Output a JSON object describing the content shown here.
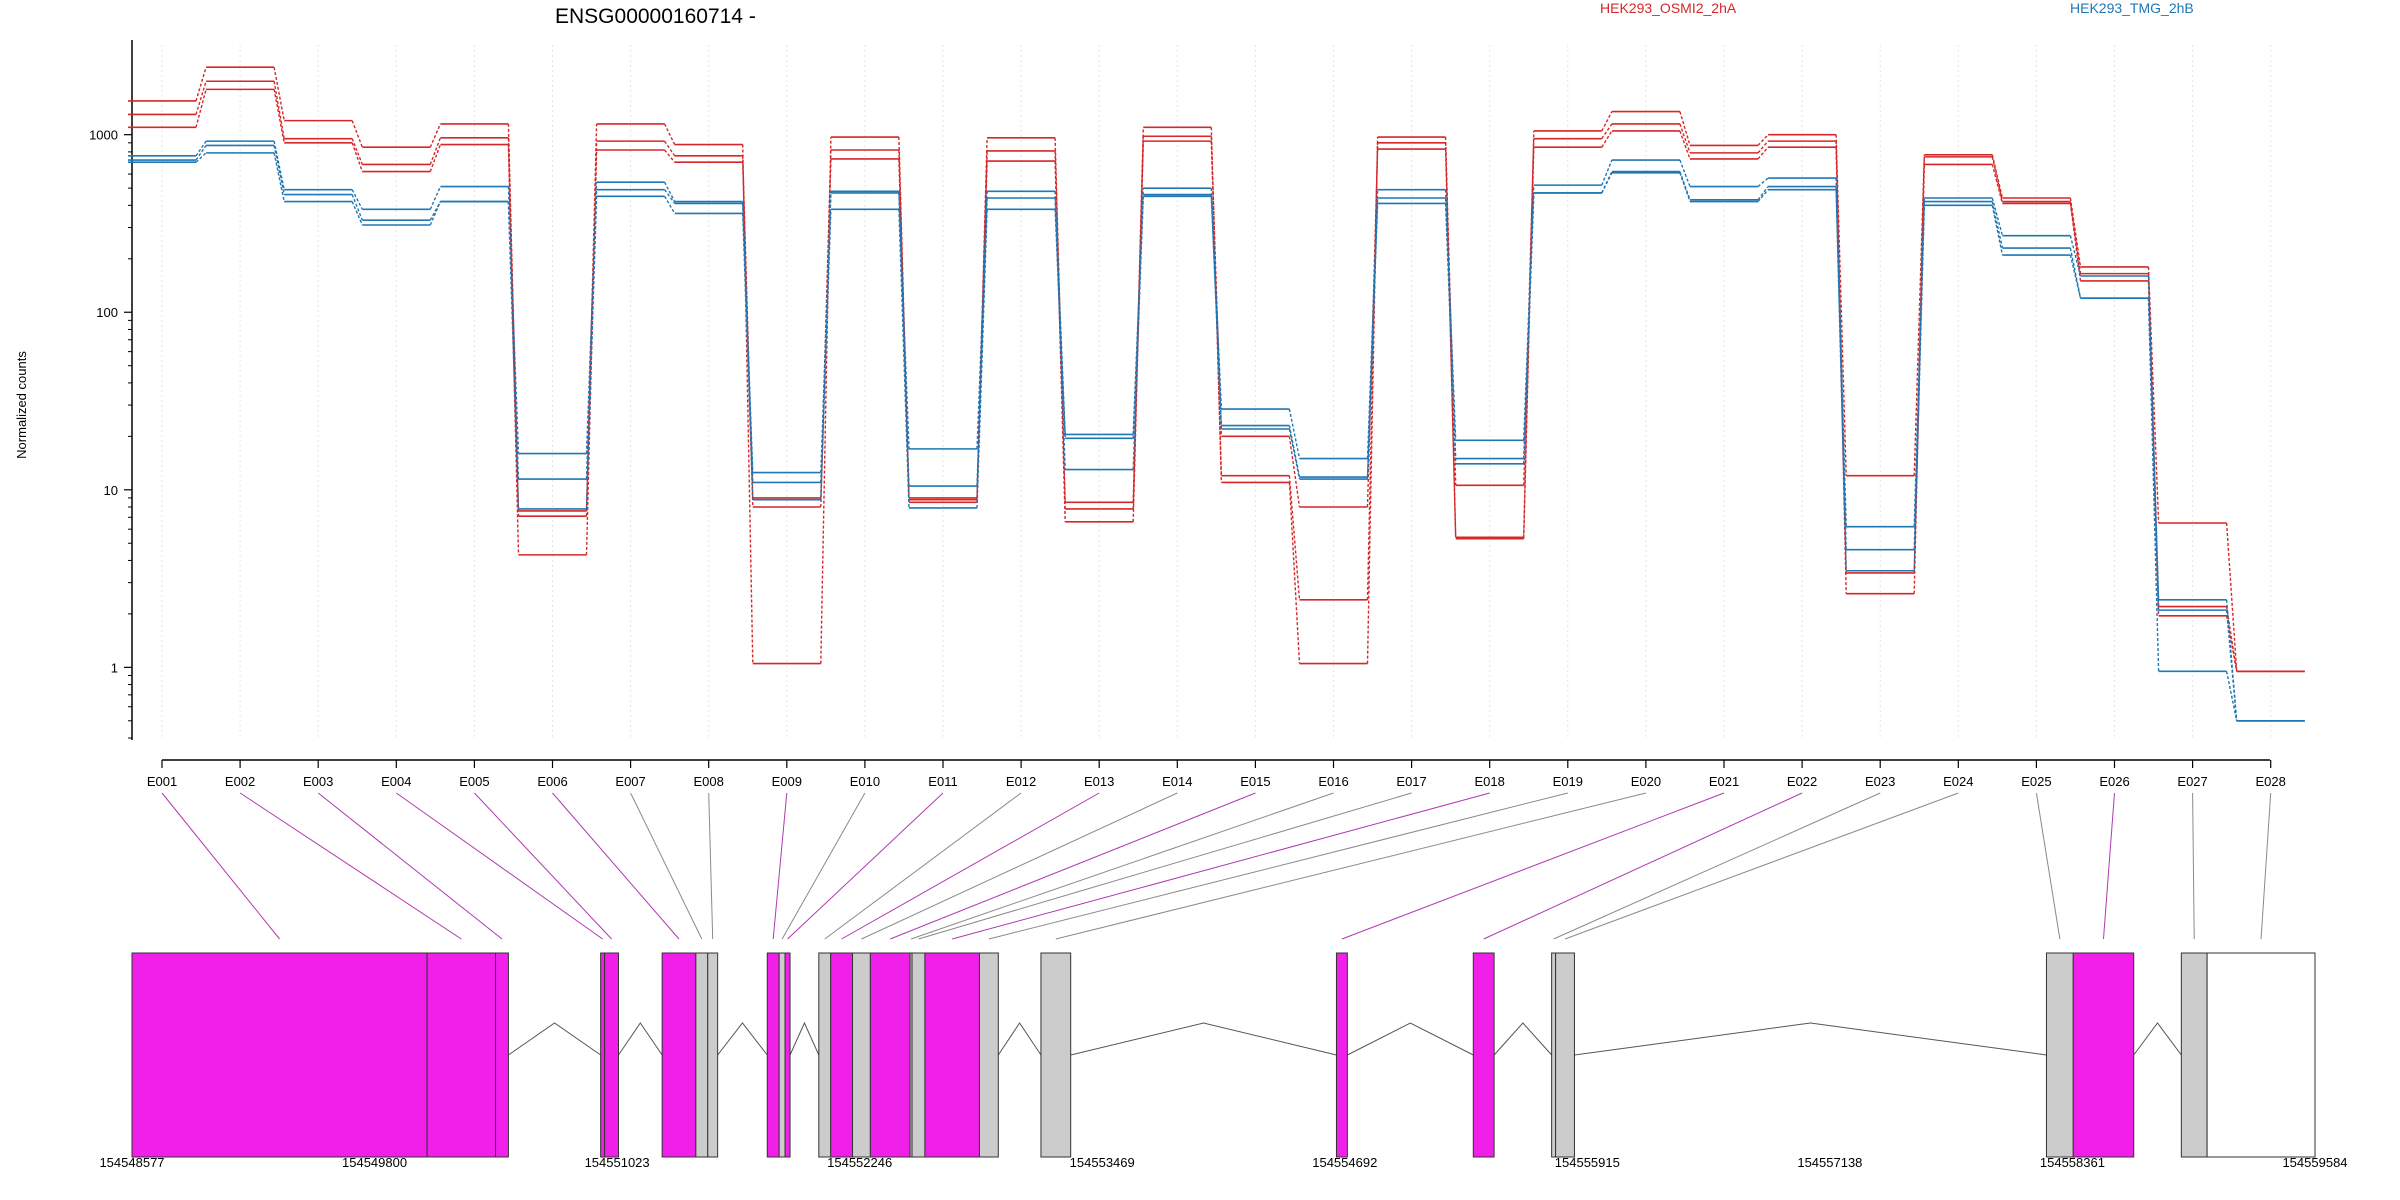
{
  "chart_data": {
    "type": "line",
    "title": "ENSG00000160714 -",
    "ylabel": "Normalized counts",
    "yscale": "log",
    "ylim": [
      0.4,
      3200
    ],
    "yticks": [
      1,
      10,
      100,
      1000
    ],
    "ytick_labels": [
      "1",
      "10",
      "100",
      "1000"
    ],
    "grid": "vertical dotted gridlines at exon centers",
    "legend_placement": "top-right",
    "categories": [
      "E001",
      "E002",
      "E003",
      "E004",
      "E005",
      "E006",
      "E007",
      "E008",
      "E009",
      "E010",
      "E011",
      "E012",
      "E013",
      "E014",
      "E015",
      "E016",
      "E017",
      "E018",
      "E019",
      "E020",
      "E021",
      "E022",
      "E023",
      "E024",
      "E025",
      "E026",
      "E027",
      "E028"
    ],
    "series": [
      {
        "name": "HEK293_OSMI2_2hA",
        "color": "#d62728",
        "values": [
          1550,
          2400,
          1200,
          850,
          1150,
          7.1,
          1150,
          880,
          1.05,
          970,
          9.0,
          960,
          8.5,
          1100,
          11.0,
          1.05,
          970,
          5.4,
          1050,
          1350,
          870,
          1000,
          12.0,
          770,
          440,
          180,
          6.5,
          0.95
        ]
      },
      {
        "name": "HEK293_OSMI2_2hA",
        "color": "#d62728",
        "values": [
          1300,
          2000,
          950,
          680,
          960,
          7.6,
          920,
          760,
          9.0,
          820,
          8.8,
          810,
          7.8,
          980,
          12.0,
          2.4,
          900,
          10.6,
          950,
          1150,
          790,
          920,
          3.4,
          750,
          420,
          165,
          2.2,
          0.95
        ]
      },
      {
        "name": "HEK293_OSMI2_2hA",
        "color": "#d62728",
        "values": [
          1100,
          1800,
          900,
          620,
          880,
          4.3,
          820,
          700,
          8.0,
          730,
          8.5,
          710,
          6.6,
          920,
          20.0,
          8.0,
          830,
          5.3,
          850,
          1050,
          730,
          850,
          2.6,
          680,
          410,
          150,
          1.95,
          0.95
        ]
      },
      {
        "name": "HEK293_TMG_2hB",
        "color": "#1f77b4",
        "values": [
          760,
          920,
          490,
          380,
          510,
          16.0,
          540,
          420,
          12.5,
          480,
          17.0,
          480,
          20.5,
          500,
          28.5,
          15.0,
          490,
          19.0,
          520,
          720,
          510,
          570,
          6.2,
          440,
          270,
          160,
          2.4,
          0.5
        ]
      },
      {
        "name": "HEK293_TMG_2hB",
        "color": "#1f77b4",
        "values": [
          720,
          870,
          460,
          330,
          420,
          11.5,
          490,
          410,
          11.0,
          470,
          10.5,
          440,
          13.0,
          460,
          23.0,
          11.8,
          440,
          15.0,
          470,
          620,
          430,
          510,
          4.6,
          420,
          230,
          120,
          2.1,
          0.5
        ]
      },
      {
        "name": "HEK293_TMG_2hB",
        "color": "#1f77b4",
        "values": [
          700,
          790,
          420,
          310,
          420,
          7.8,
          450,
          360,
          8.8,
          380,
          7.9,
          380,
          19.5,
          450,
          22.0,
          11.5,
          410,
          14.0,
          470,
          610,
          420,
          490,
          3.5,
          400,
          210,
          120,
          0.95,
          0.5
        ]
      }
    ],
    "gene_model": {
      "x_axis_ticks": [
        "154548577",
        "154549800",
        "154551023",
        "154552246",
        "154553469",
        "154554692",
        "154555915",
        "154557138",
        "154558361",
        "154559584"
      ],
      "coord_range": [
        154548577,
        154559584
      ],
      "exon_colors": {
        "significant": "#f020ea",
        "tested": "#cccccc",
        "untested": "#ffffff"
      },
      "exons": [
        {
          "id": "E001",
          "start": 154548577,
          "end": 154550065,
          "type": "significant"
        },
        {
          "id": "E002",
          "start": 154550065,
          "end": 154550410,
          "type": "significant"
        },
        {
          "id": "E003",
          "start": 154550410,
          "end": 154550475,
          "type": "significant"
        },
        {
          "id": "E004",
          "start": 154550940,
          "end": 154550960,
          "type": "significant"
        },
        {
          "id": "E005",
          "start": 154550960,
          "end": 154551030,
          "type": "significant"
        },
        {
          "id": "E006",
          "start": 154551250,
          "end": 154551420,
          "type": "significant"
        },
        {
          "id": "E007",
          "start": 154551420,
          "end": 154551480,
          "type": "tested"
        },
        {
          "id": "E008",
          "start": 154551480,
          "end": 154551530,
          "type": "tested"
        },
        {
          "id": "E009",
          "start": 154551780,
          "end": 154551840,
          "type": "significant"
        },
        {
          "id": "E010",
          "start": 154551840,
          "end": 154551870,
          "type": "tested"
        },
        {
          "id": "E011",
          "start": 154551870,
          "end": 154551895,
          "type": "significant"
        },
        {
          "id": "E012",
          "start": 154552040,
          "end": 154552100,
          "type": "tested"
        },
        {
          "id": "E013",
          "start": 154552100,
          "end": 154552210,
          "type": "significant"
        },
        {
          "id": "E014",
          "start": 154552210,
          "end": 154552300,
          "type": "tested"
        },
        {
          "id": "E015",
          "start": 154552300,
          "end": 154552500,
          "type": "significant"
        },
        {
          "id": "E016",
          "start": 154552500,
          "end": 154552510,
          "type": "tested"
        },
        {
          "id": "E017",
          "start": 154552510,
          "end": 154552575,
          "type": "tested"
        },
        {
          "id": "E018",
          "start": 154552575,
          "end": 154552850,
          "type": "significant"
        },
        {
          "id": "E019",
          "start": 154552850,
          "end": 154552945,
          "type": "tested"
        },
        {
          "id": "E020",
          "start": 154553160,
          "end": 154553310,
          "type": "tested"
        },
        {
          "id": "E021",
          "start": 154554650,
          "end": 154554705,
          "type": "significant"
        },
        {
          "id": "E022",
          "start": 154555340,
          "end": 154555445,
          "type": "significant"
        },
        {
          "id": "E023",
          "start": 154555735,
          "end": 154555755,
          "type": "tested"
        },
        {
          "id": "E024",
          "start": 154555755,
          "end": 154555850,
          "type": "tested"
        },
        {
          "id": "E025",
          "start": 154558230,
          "end": 154558365,
          "type": "tested"
        },
        {
          "id": "E026",
          "start": 154558365,
          "end": 154558670,
          "type": "significant"
        },
        {
          "id": "E027",
          "start": 154558910,
          "end": 154559040,
          "type": "tested"
        },
        {
          "id": "E028",
          "start": 154559040,
          "end": 154559584,
          "type": "untested"
        }
      ]
    }
  }
}
